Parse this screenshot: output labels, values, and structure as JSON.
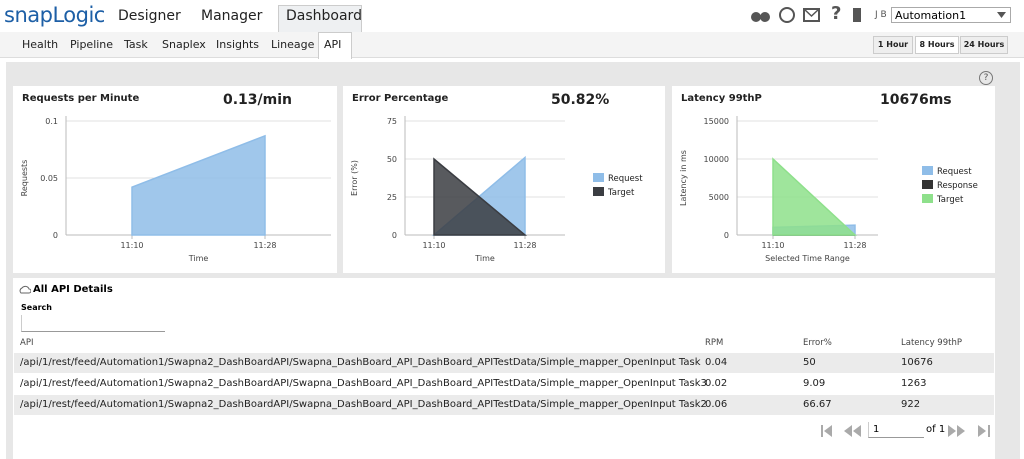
{
  "header": {
    "logo": "snapLogic",
    "tabs": [
      "Designer",
      "Manager",
      "Dashboard"
    ],
    "user": "J B",
    "org": "Automation1",
    "help": "?"
  },
  "subtabs": [
    "Health",
    "Pipeline",
    "Task",
    "Snaplex",
    "Insights",
    "Lineage",
    "API"
  ],
  "time_ranges": [
    "1 Hour",
    "8 Hours",
    "24 Hours"
  ],
  "chart_data": [
    {
      "type": "area",
      "title": "Requests per Minute",
      "headline": "0.13/min",
      "categories": [
        "11:10",
        "11:28"
      ],
      "xlabel": "Time",
      "ylabel": "Requests",
      "ylim": [
        0,
        0.1
      ],
      "yticks": [
        0,
        0.05,
        0.1
      ],
      "grid": true,
      "legend": false,
      "series": [
        {
          "color": "#8fbde8",
          "values": [
            0.042,
            0.087
          ]
        }
      ]
    },
    {
      "type": "area",
      "title": "Error Percentage",
      "headline": "50.82%",
      "categories": [
        "11:10",
        "11:28"
      ],
      "xlabel": "Time",
      "ylabel": "Error (%)",
      "ylim": [
        0,
        75
      ],
      "yticks": [
        0,
        25,
        50,
        75
      ],
      "grid": true,
      "legend": "right",
      "series": [
        {
          "name": "Request",
          "color": "#8fbde8",
          "values": [
            0,
            51
          ]
        },
        {
          "name": "Target",
          "color": "#3b3d42",
          "values": [
            50,
            0
          ]
        }
      ]
    },
    {
      "type": "area",
      "title": "Latency 99thP",
      "headline": "10676ms",
      "categories": [
        "11:10",
        "11:28"
      ],
      "xlabel": "Selected Time Range",
      "ylabel": "Latency in ms",
      "ylim": [
        0,
        15000
      ],
      "yticks": [
        0,
        5000,
        10000,
        15000
      ],
      "grid": true,
      "legend": "right",
      "series": [
        {
          "name": "Request",
          "color": "#8fbde8",
          "values": [
            1000,
            1300
          ]
        },
        {
          "name": "Response",
          "color": "#333333",
          "values": [
            0,
            0
          ]
        },
        {
          "name": "Target",
          "color": "#8ee08b",
          "values": [
            10000,
            0
          ]
        }
      ]
    }
  ],
  "details": {
    "title": "All API Details",
    "search_label": "Search",
    "columns": [
      "API",
      "RPM",
      "Error%",
      "Latency 99thP"
    ],
    "rows": [
      [
        "/api/1/rest/feed/Automation1/Swapna2_DashBoardAPI/Swapna_DashBoard_API_DashBoard_APITestData/Simple_mapper_OpenInput Task",
        "0.04",
        "50",
        "10676"
      ],
      [
        "/api/1/rest/feed/Automation1/Swapna2_DashBoardAPI/Swapna_DashBoard_API_DashBoard_APITestData/Simple_mapper_OpenInput Task3",
        "0.02",
        "9.09",
        "1263"
      ],
      [
        "/api/1/rest/feed/Automation1/Swapna2_DashBoardAPI/Swapna_DashBoard_API_DashBoard_APITestData/Simple_mapper_OpenInput Task2",
        "0.06",
        "66.67",
        "922"
      ]
    ]
  },
  "pagination": {
    "page": "1",
    "total": "of 1"
  }
}
